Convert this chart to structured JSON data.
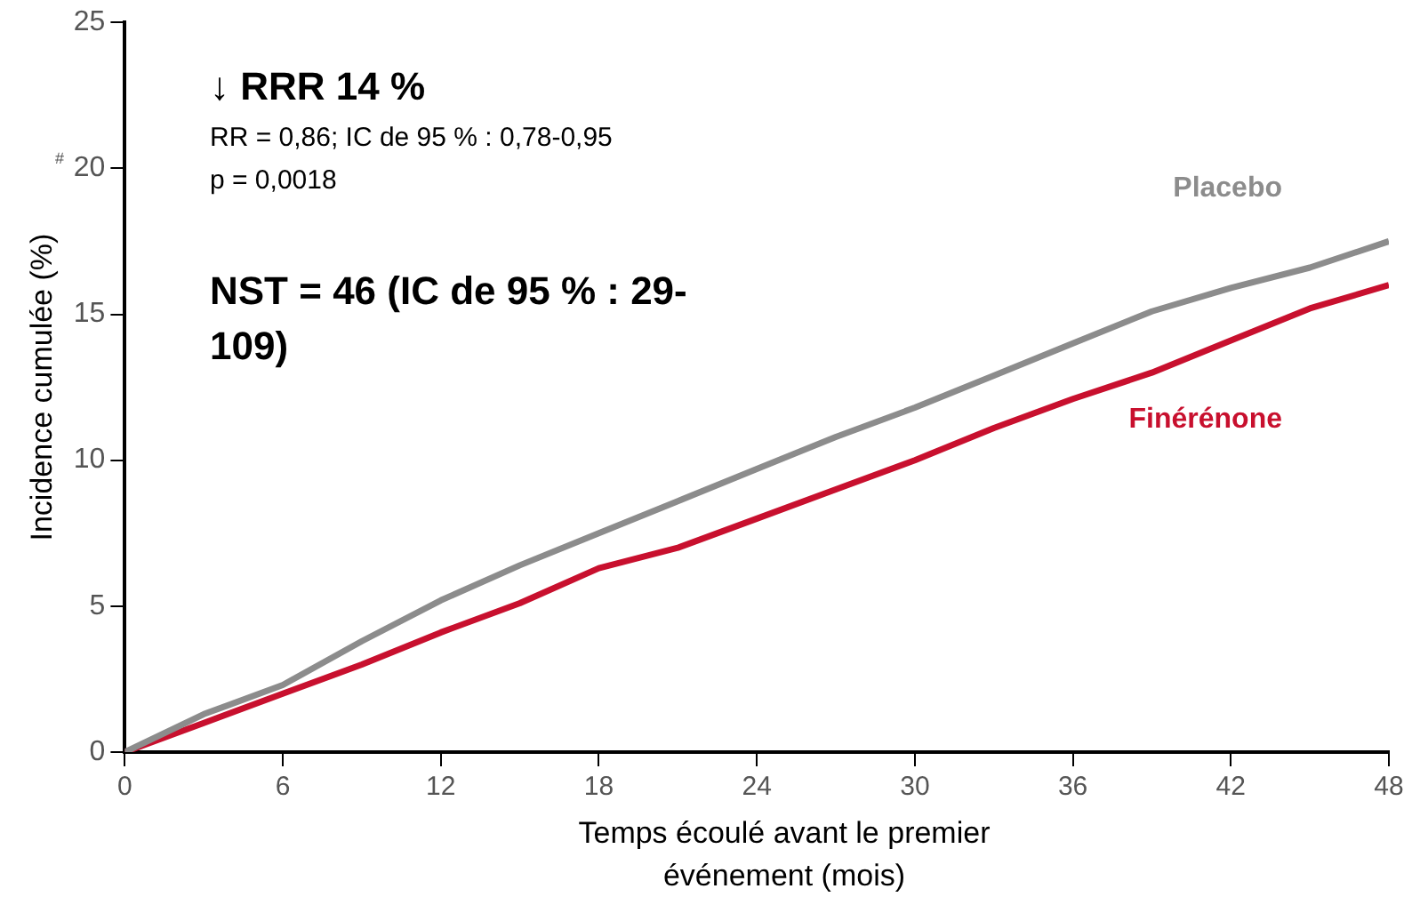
{
  "chart_data": {
    "type": "line",
    "xlabel": "Temps écoulé avant le premier événement (mois)",
    "ylabel": "Incidence cumulée (%)",
    "x": [
      0,
      3,
      6,
      9,
      12,
      15,
      18,
      21,
      24,
      27,
      30,
      33,
      36,
      39,
      42,
      45,
      48
    ],
    "series": [
      {
        "name": "Placebo",
        "color": "#8c8c8c",
        "values": [
          0,
          1.3,
          2.3,
          3.8,
          5.2,
          6.4,
          7.5,
          8.6,
          9.7,
          10.8,
          11.8,
          12.9,
          14.0,
          15.1,
          15.9,
          16.6,
          17.5
        ]
      },
      {
        "name": "Finérénone",
        "color": "#c8102e",
        "values": [
          0,
          1.0,
          2.0,
          3.0,
          4.1,
          5.1,
          6.3,
          7.0,
          8.0,
          9.0,
          10.0,
          11.1,
          12.1,
          13.0,
          14.1,
          15.2,
          16.0
        ]
      }
    ],
    "xlim": [
      0,
      48
    ],
    "xticks": [
      0,
      6,
      12,
      18,
      24,
      30,
      36,
      42,
      48
    ],
    "ylim": [
      0,
      25
    ],
    "yticks": [
      0,
      5,
      10,
      15,
      20,
      25
    ],
    "grid": false,
    "legend": false,
    "marker": "none",
    "line_style": "solid",
    "annotations": [
      "↓ RRR 14 %",
      "RR = 0,86; IC de 95 % : 0,78-0,95",
      "p = 0,0018",
      "NST = 46 (IC de 95 % : 29-109)",
      "#"
    ]
  }
}
